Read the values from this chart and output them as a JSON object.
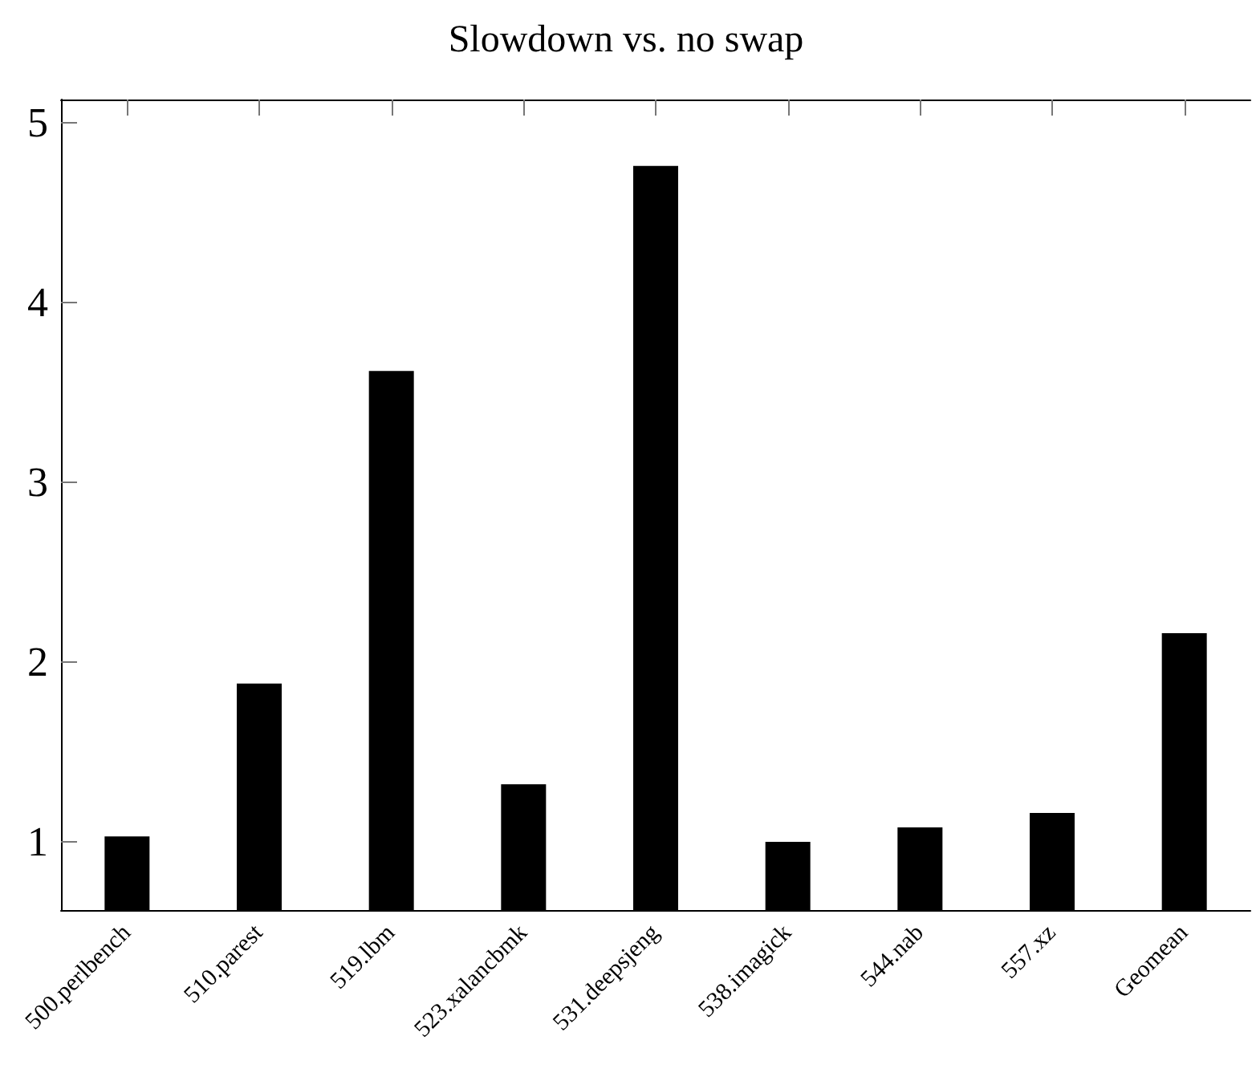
{
  "chart_data": {
    "type": "bar",
    "title": "Slowdown vs. no swap",
    "categories": [
      "500.perlbench",
      "510.parest",
      "519.lbm",
      "523.xalancbmk",
      "531.deepsjeng",
      "538.imagick",
      "544.nab",
      "557.xz",
      "Geomean"
    ],
    "values": [
      1.03,
      1.88,
      3.62,
      1.32,
      4.76,
      1.0,
      1.08,
      1.16,
      2.16
    ],
    "color": "#000000",
    "ylim": [
      0.62,
      5.13
    ],
    "yticks": [
      1,
      2,
      3,
      4,
      5
    ],
    "grid": false
  }
}
